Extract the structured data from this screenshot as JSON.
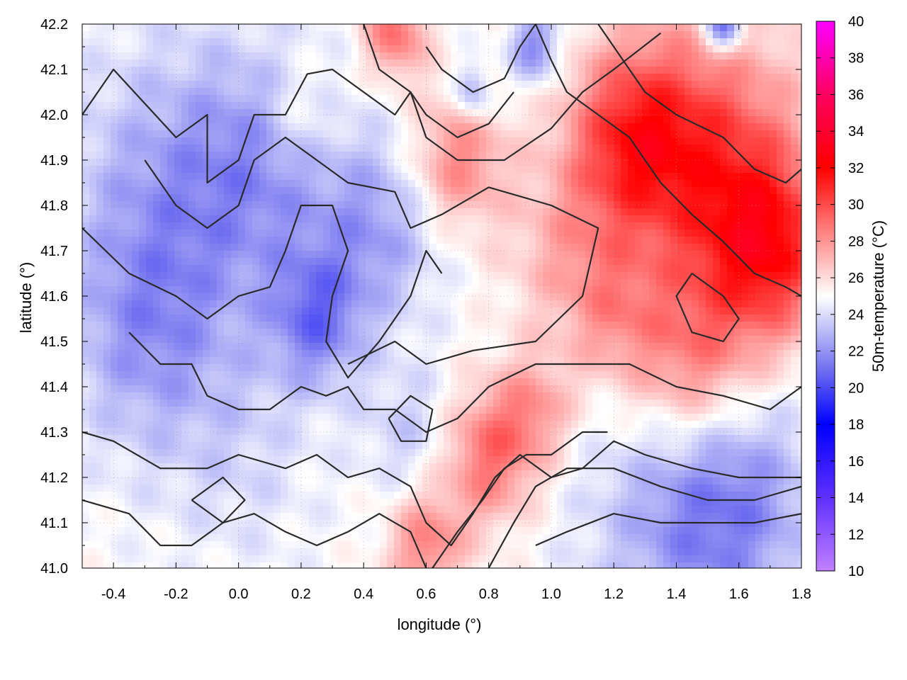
{
  "chart_data": {
    "type": "heatmap",
    "title": "",
    "xlabel": "longitude (°)",
    "ylabel": "latitude (°)",
    "colorbar_label": "50m-temperature (°C)",
    "xlim": [
      -0.5,
      1.8
    ],
    "ylim": [
      41.0,
      42.2
    ],
    "x_ticks": [
      -0.4,
      -0.2,
      0.0,
      0.2,
      0.4,
      0.6,
      0.8,
      1.0,
      1.2,
      1.4,
      1.6,
      1.8
    ],
    "x_tick_labels": [
      "-0.4",
      "-0.2",
      "0.0",
      "0.2",
      "0.4",
      "0.6",
      "0.8",
      "1.0",
      "1.2",
      "1.4",
      "1.6",
      "1.8"
    ],
    "y_ticks": [
      41.0,
      41.1,
      41.2,
      41.3,
      41.4,
      41.5,
      41.6,
      41.7,
      41.8,
      41.9,
      42.0,
      42.1,
      42.2
    ],
    "y_tick_labels": [
      "41.0",
      "41.1",
      "41.2",
      "41.3",
      "41.4",
      "41.5",
      "41.6",
      "41.7",
      "41.8",
      "41.9",
      "42.0",
      "42.1",
      "42.2"
    ],
    "colorbar_range": [
      10,
      40
    ],
    "colorbar_ticks": [
      10,
      12,
      14,
      16,
      18,
      20,
      22,
      24,
      26,
      28,
      30,
      32,
      34,
      36,
      38,
      40
    ],
    "colorbar_tick_labels": [
      "10",
      "12",
      "14",
      "16",
      "18",
      "20",
      "22",
      "24",
      "26",
      "28",
      "30",
      "32",
      "34",
      "36",
      "38",
      "40"
    ],
    "colorscale": [
      {
        "value": 10,
        "color": "#c080ff"
      },
      {
        "value": 14,
        "color": "#6030ff"
      },
      {
        "value": 18,
        "color": "#0000ff"
      },
      {
        "value": 21,
        "color": "#7070f0"
      },
      {
        "value": 25,
        "color": "#ffffff"
      },
      {
        "value": 29,
        "color": "#ff7070"
      },
      {
        "value": 32,
        "color": "#ff0000"
      },
      {
        "value": 36,
        "color": "#ff0060"
      },
      {
        "value": 40,
        "color": "#ff00ff"
      }
    ],
    "temperature_blobs": [
      {
        "lon": -0.2,
        "lat": 41.8,
        "temp": 22.3,
        "r": 0.35
      },
      {
        "lon": 0.1,
        "lat": 41.9,
        "temp": 23.0,
        "r": 0.25
      },
      {
        "lon": 0.25,
        "lat": 41.55,
        "temp": 21.5,
        "r": 0.15
      },
      {
        "lon": 0.45,
        "lat": 41.75,
        "temp": 22.5,
        "r": 0.2
      },
      {
        "lon": -0.3,
        "lat": 41.5,
        "temp": 23.0,
        "r": 0.25
      },
      {
        "lon": 0.0,
        "lat": 41.25,
        "temp": 24.0,
        "r": 0.25
      },
      {
        "lon": 0.55,
        "lat": 41.3,
        "temp": 23.5,
        "r": 0.15
      },
      {
        "lon": 1.4,
        "lat": 41.1,
        "temp": 22.8,
        "r": 0.3
      },
      {
        "lon": 1.6,
        "lat": 41.15,
        "temp": 22.5,
        "r": 0.25
      },
      {
        "lon": 0.95,
        "lat": 42.15,
        "temp": 21.5,
        "r": 0.08
      },
      {
        "lon": 1.55,
        "lat": 42.2,
        "temp": 19.5,
        "r": 0.06
      },
      {
        "lon": 0.75,
        "lat": 42.05,
        "temp": 22.0,
        "r": 0.06
      },
      {
        "lon": 1.5,
        "lat": 41.9,
        "temp": 30.0,
        "r": 0.3
      },
      {
        "lon": 1.7,
        "lat": 41.7,
        "temp": 30.5,
        "r": 0.2
      },
      {
        "lon": 1.25,
        "lat": 41.95,
        "temp": 29.5,
        "r": 0.2
      },
      {
        "lon": 0.8,
        "lat": 41.25,
        "temp": 29.0,
        "r": 0.15
      },
      {
        "lon": 1.45,
        "lat": 41.45,
        "temp": 28.5,
        "r": 0.2
      },
      {
        "lon": 0.7,
        "lat": 41.9,
        "temp": 28.5,
        "r": 0.15
      },
      {
        "lon": 1.05,
        "lat": 41.7,
        "temp": 27.0,
        "r": 0.2
      },
      {
        "lon": 0.2,
        "lat": 42.0,
        "temp": 26.5,
        "r": 0.12
      },
      {
        "lon": 0.5,
        "lat": 42.18,
        "temp": 29.0,
        "r": 0.1
      },
      {
        "lon": 0.6,
        "lat": 41.05,
        "temp": 28.5,
        "r": 0.12
      },
      {
        "lon": 0.95,
        "lat": 41.35,
        "temp": 27.5,
        "r": 0.12
      },
      {
        "lon": 1.2,
        "lat": 41.55,
        "temp": 27.0,
        "r": 0.15
      }
    ],
    "contours": [
      [
        [
          -0.5,
          42.0
        ],
        [
          -0.4,
          42.1
        ],
        [
          -0.2,
          41.95
        ],
        [
          -0.1,
          42.0
        ],
        [
          -0.1,
          41.85
        ],
        [
          0.0,
          41.9
        ],
        [
          0.05,
          42.0
        ],
        [
          0.15,
          42.0
        ],
        [
          0.22,
          42.09
        ],
        [
          0.3,
          42.1
        ],
        [
          0.4,
          42.05
        ],
        [
          0.5,
          42.0
        ],
        [
          0.55,
          42.05
        ],
        [
          0.6,
          41.95
        ],
        [
          0.7,
          41.9
        ],
        [
          0.85,
          41.9
        ],
        [
          1.0,
          41.97
        ],
        [
          1.1,
          42.05
        ],
        [
          1.2,
          42.1
        ],
        [
          1.35,
          42.18
        ]
      ],
      [
        [
          -0.3,
          41.9
        ],
        [
          -0.2,
          41.8
        ],
        [
          -0.1,
          41.75
        ],
        [
          0.0,
          41.8
        ],
        [
          0.05,
          41.9
        ],
        [
          0.15,
          41.95
        ],
        [
          0.25,
          41.9
        ],
        [
          0.35,
          41.85
        ],
        [
          0.5,
          41.83
        ],
        [
          0.55,
          41.75
        ],
        [
          0.65,
          41.78
        ],
        [
          0.8,
          41.84
        ],
        [
          1.0,
          41.8
        ],
        [
          1.15,
          41.75
        ],
        [
          1.1,
          41.6
        ],
        [
          0.95,
          41.5
        ],
        [
          0.75,
          41.48
        ],
        [
          0.6,
          41.45
        ],
        [
          0.5,
          41.5
        ],
        [
          0.35,
          41.45
        ]
      ],
      [
        [
          -0.5,
          41.75
        ],
        [
          -0.35,
          41.65
        ],
        [
          -0.2,
          41.6
        ],
        [
          -0.1,
          41.55
        ],
        [
          0.0,
          41.6
        ],
        [
          0.1,
          41.62
        ],
        [
          0.15,
          41.7
        ],
        [
          0.2,
          41.8
        ],
        [
          0.3,
          41.8
        ],
        [
          0.35,
          41.7
        ],
        [
          0.3,
          41.6
        ],
        [
          0.28,
          41.5
        ],
        [
          0.35,
          41.42
        ],
        [
          0.45,
          41.5
        ],
        [
          0.55,
          41.6
        ],
        [
          0.6,
          41.7
        ],
        [
          0.65,
          41.65
        ]
      ],
      [
        [
          -0.35,
          41.52
        ],
        [
          -0.25,
          41.45
        ],
        [
          -0.15,
          41.45
        ],
        [
          -0.1,
          41.38
        ],
        [
          0.0,
          41.35
        ],
        [
          0.1,
          41.35
        ],
        [
          0.2,
          41.4
        ],
        [
          0.28,
          41.38
        ],
        [
          0.35,
          41.4
        ],
        [
          0.4,
          41.35
        ],
        [
          0.5,
          41.35
        ],
        [
          0.6,
          41.3
        ],
        [
          0.7,
          41.33
        ],
        [
          0.8,
          41.4
        ],
        [
          0.95,
          41.45
        ],
        [
          1.1,
          41.45
        ],
        [
          1.25,
          41.45
        ],
        [
          1.4,
          41.4
        ],
        [
          1.55,
          41.38
        ],
        [
          1.7,
          41.35
        ],
        [
          1.8,
          41.4
        ]
      ],
      [
        [
          -0.5,
          41.3
        ],
        [
          -0.4,
          41.28
        ],
        [
          -0.25,
          41.22
        ],
        [
          -0.1,
          41.22
        ],
        [
          0.0,
          41.25
        ],
        [
          0.15,
          41.22
        ],
        [
          0.25,
          41.25
        ],
        [
          0.35,
          41.2
        ],
        [
          0.45,
          41.22
        ],
        [
          0.55,
          41.18
        ],
        [
          0.6,
          41.1
        ],
        [
          0.68,
          41.05
        ],
        [
          0.75,
          41.12
        ],
        [
          0.82,
          41.2
        ],
        [
          0.9,
          41.25
        ],
        [
          1.0,
          41.2
        ],
        [
          1.1,
          41.22
        ],
        [
          1.2,
          41.28
        ],
        [
          1.3,
          41.25
        ],
        [
          1.45,
          41.22
        ],
        [
          1.6,
          41.2
        ],
        [
          1.8,
          41.2
        ]
      ],
      [
        [
          -0.5,
          41.15
        ],
        [
          -0.35,
          41.12
        ],
        [
          -0.25,
          41.05
        ],
        [
          -0.15,
          41.05
        ],
        [
          -0.05,
          41.1
        ],
        [
          0.05,
          41.12
        ],
        [
          0.15,
          41.08
        ],
        [
          0.25,
          41.05
        ],
        [
          0.35,
          41.08
        ],
        [
          0.45,
          41.12
        ],
        [
          0.55,
          41.08
        ],
        [
          0.6,
          41.0
        ]
      ],
      [
        [
          0.62,
          41.0
        ],
        [
          0.7,
          41.08
        ],
        [
          0.78,
          41.15
        ],
        [
          0.85,
          41.22
        ],
        [
          0.92,
          41.25
        ],
        [
          1.0,
          41.25
        ],
        [
          1.1,
          41.3
        ],
        [
          1.18,
          41.3
        ]
      ],
      [
        [
          0.8,
          41.0
        ],
        [
          0.88,
          41.1
        ],
        [
          0.95,
          41.18
        ],
        [
          1.05,
          41.22
        ],
        [
          1.2,
          41.22
        ],
        [
          1.35,
          41.18
        ],
        [
          1.5,
          41.15
        ],
        [
          1.65,
          41.15
        ],
        [
          1.8,
          41.18
        ]
      ],
      [
        [
          0.95,
          41.05
        ],
        [
          1.05,
          41.08
        ],
        [
          1.2,
          41.12
        ],
        [
          1.35,
          41.1
        ],
        [
          1.5,
          41.1
        ],
        [
          1.65,
          41.1
        ],
        [
          1.8,
          41.12
        ]
      ],
      [
        [
          0.95,
          42.2
        ],
        [
          1.0,
          42.12
        ],
        [
          1.05,
          42.05
        ],
        [
          1.15,
          42.0
        ],
        [
          1.25,
          41.95
        ],
        [
          1.35,
          41.85
        ],
        [
          1.45,
          41.78
        ],
        [
          1.55,
          41.72
        ],
        [
          1.65,
          41.65
        ],
        [
          1.75,
          41.62
        ],
        [
          1.8,
          41.6
        ]
      ],
      [
        [
          1.15,
          42.2
        ],
        [
          1.2,
          42.15
        ],
        [
          1.3,
          42.05
        ],
        [
          1.4,
          42.0
        ],
        [
          1.55,
          41.95
        ],
        [
          1.65,
          41.88
        ],
        [
          1.75,
          41.85
        ],
        [
          1.8,
          41.88
        ]
      ],
      [
        [
          0.48,
          41.33
        ],
        [
          0.52,
          41.28
        ],
        [
          0.6,
          41.28
        ],
        [
          0.62,
          41.35
        ],
        [
          0.55,
          41.38
        ],
        [
          0.48,
          41.33
        ]
      ],
      [
        [
          -0.15,
          41.15
        ],
        [
          -0.05,
          41.1
        ],
        [
          0.02,
          41.15
        ],
        [
          -0.05,
          41.2
        ],
        [
          -0.15,
          41.15
        ]
      ],
      [
        [
          1.45,
          41.65
        ],
        [
          1.55,
          41.6
        ],
        [
          1.6,
          41.55
        ],
        [
          1.55,
          41.5
        ],
        [
          1.45,
          41.52
        ],
        [
          1.4,
          41.6
        ],
        [
          1.45,
          41.65
        ]
      ],
      [
        [
          0.6,
          42.15
        ],
        [
          0.65,
          42.1
        ],
        [
          0.75,
          42.05
        ],
        [
          0.85,
          42.08
        ],
        [
          0.9,
          42.15
        ],
        [
          0.95,
          42.2
        ]
      ],
      [
        [
          0.4,
          42.2
        ],
        [
          0.45,
          42.1
        ],
        [
          0.55,
          42.05
        ],
        [
          0.6,
          42.0
        ],
        [
          0.7,
          41.95
        ],
        [
          0.8,
          41.98
        ],
        [
          0.88,
          42.05
        ]
      ]
    ]
  }
}
